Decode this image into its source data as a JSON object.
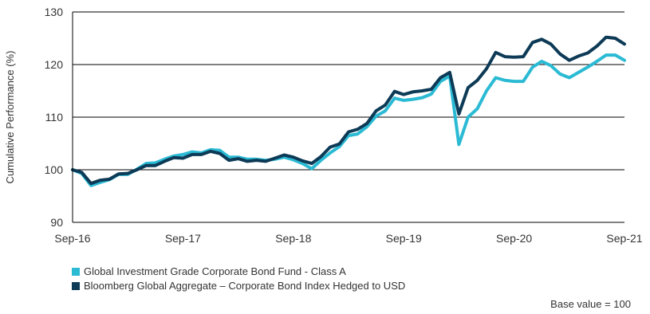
{
  "chart_data": {
    "type": "line",
    "ylabel": "Cumulative Performance (%)",
    "ylim": [
      90,
      130
    ],
    "yticks": [
      90,
      100,
      110,
      120,
      130
    ],
    "x_tick_labels": [
      "Sep-16",
      "Sep-17",
      "Sep-18",
      "Sep-19",
      "Sep-20",
      "Sep-21"
    ],
    "x_period": "monthly",
    "x_start": "Sep-16",
    "x_end": "Sep-21",
    "grid": "horizontal",
    "legend_position": "bottom-left",
    "series": [
      {
        "name": "Global Investment Grade Corporate Bond Fund - Class A",
        "color": "#2bbad4",
        "values": [
          100.0,
          99.3,
          97.0,
          97.6,
          98.1,
          99.1,
          99.1,
          100.1,
          101.2,
          101.3,
          102.0,
          102.6,
          102.9,
          103.4,
          103.2,
          103.8,
          103.7,
          102.4,
          102.4,
          102.0,
          102.0,
          101.8,
          102.0,
          102.4,
          101.9,
          101.2,
          100.2,
          101.8,
          103.2,
          104.4,
          106.5,
          106.8,
          108.2,
          110.2,
          111.2,
          113.6,
          113.2,
          113.4,
          113.7,
          114.4,
          116.8,
          117.8,
          104.8,
          110.0,
          111.6,
          115.0,
          117.5,
          117.0,
          116.8,
          116.8,
          119.5,
          120.6,
          119.8,
          118.2,
          117.5,
          118.5,
          119.5,
          120.6,
          121.8,
          121.8,
          120.8
        ]
      },
      {
        "name": "Bloomberg Global Aggregate – Corporate Bond Index Hedged to USD",
        "color": "#0d3a56",
        "values": [
          100.0,
          99.5,
          97.4,
          98.0,
          98.2,
          99.2,
          99.3,
          100.0,
          100.8,
          100.8,
          101.6,
          102.3,
          102.2,
          102.9,
          102.9,
          103.5,
          103.1,
          101.8,
          102.1,
          101.6,
          101.8,
          101.6,
          102.2,
          102.8,
          102.4,
          101.7,
          101.2,
          102.5,
          104.3,
          104.9,
          107.2,
          107.7,
          108.8,
          111.2,
          112.3,
          114.9,
          114.3,
          114.8,
          115.0,
          115.3,
          117.5,
          118.5,
          110.6,
          115.6,
          117.0,
          119.2,
          122.3,
          121.5,
          121.4,
          121.5,
          124.2,
          124.8,
          123.9,
          122.0,
          120.8,
          121.6,
          122.2,
          123.5,
          125.2,
          125.0,
          123.9
        ]
      }
    ]
  },
  "footnote": "Base value = 100"
}
